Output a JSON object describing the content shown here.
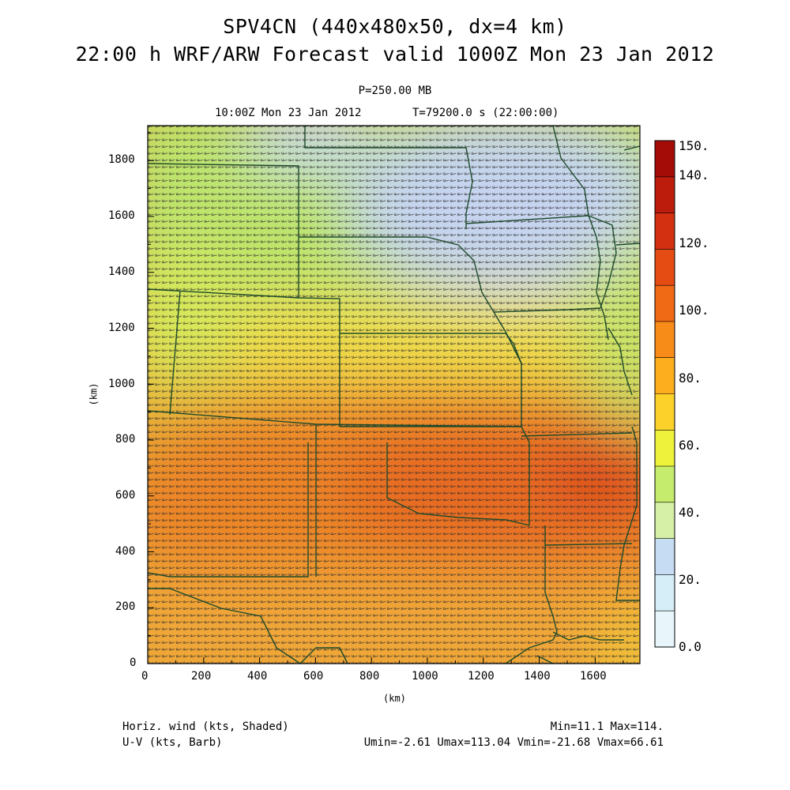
{
  "header": {
    "title_line1": "SPV4CN (440x480x50, dx=4 km)",
    "title_line2": "22:00 h WRF/ARW Forecast valid 1000Z Mon 23 Jan 2012",
    "level": "P=250.00 MB",
    "valid_time": "10:00Z Mon 23 Jan 2012",
    "forecast_time": "T=79200.0 s (22:00:00)"
  },
  "axes": {
    "x_label": "(km)",
    "y_label": "(km)",
    "x_ticks": [
      "0",
      "200",
      "400",
      "600",
      "800",
      "1000",
      "1200",
      "1400",
      "1600"
    ],
    "y_ticks": [
      "0",
      "200",
      "400",
      "600",
      "800",
      "1000",
      "1200",
      "1400",
      "1600",
      "1800"
    ]
  },
  "colorbar": {
    "labels": [
      "0.0",
      "20.",
      "40.",
      "60.",
      "80.",
      "100.",
      "120.",
      "140.",
      "150."
    ],
    "colors": [
      "#e8f6fc",
      "#d6eef8",
      "#c6dcf2",
      "#d6f0a8",
      "#c6ec6e",
      "#eef23a",
      "#fcd22a",
      "#fcae1e",
      "#f88c18",
      "#f06a16",
      "#e44c14",
      "#d23010",
      "#bc1c0c",
      "#a40c08"
    ]
  },
  "footer": {
    "field1": "Horiz. wind (kts, Shaded)",
    "field2": "U-V (kts, Barb)",
    "minmax": "Min=11.1 Max=114.",
    "uv_stats": "Umin=-2.61 Umax=113.04 Vmin=-21.68 Vmax=66.61"
  }
}
